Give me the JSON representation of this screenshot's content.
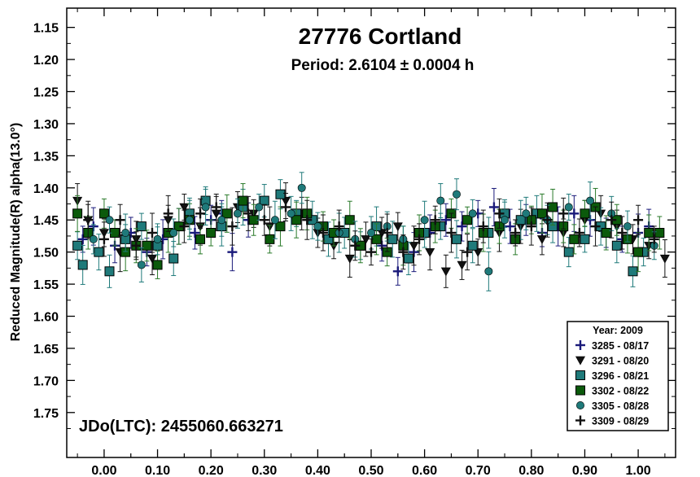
{
  "chart_data": {
    "type": "scatter",
    "title": "27776 Cortland",
    "subtitle": "Period: 2.6104 ± 0.0004 h",
    "ylabel": "Reduced Magnitude(R) alpha(13.0°)",
    "xlabel": "",
    "annotation": "JDo(LTC): 2455060.663271",
    "xlim": [
      -0.07,
      1.07
    ],
    "ylim": [
      1.12,
      1.82
    ],
    "y_inverted": true,
    "x_ticks": [
      "0.00",
      "0.10",
      "0.20",
      "0.30",
      "0.40",
      "0.50",
      "0.60",
      "0.70",
      "0.80",
      "0.90",
      "1.00"
    ],
    "y_ticks": [
      "1.15",
      "1.20",
      "1.25",
      "1.30",
      "1.35",
      "1.40",
      "1.45",
      "1.50",
      "1.55",
      "1.60",
      "1.65",
      "1.70",
      "1.75"
    ],
    "legend": {
      "title": "Year: 2009",
      "position": "bottom-right"
    },
    "series": [
      {
        "name": "3285 - 08/17",
        "marker": "plus",
        "color": "#1a1a7a",
        "points": [
          [
            -0.04,
            1.48
          ],
          [
            -0.02,
            1.46
          ],
          [
            0.02,
            1.49
          ],
          [
            0.05,
            1.47
          ],
          [
            0.08,
            1.5
          ],
          [
            0.11,
            1.48
          ],
          [
            0.14,
            1.46
          ],
          [
            0.17,
            1.47
          ],
          [
            0.2,
            1.45
          ],
          [
            0.22,
            1.44
          ],
          [
            0.24,
            1.5
          ],
          [
            0.27,
            1.45
          ],
          [
            0.52,
            1.49
          ],
          [
            0.55,
            1.53
          ],
          [
            0.58,
            1.5
          ],
          [
            0.61,
            1.47
          ],
          [
            0.64,
            1.45
          ],
          [
            0.67,
            1.46
          ],
          [
            0.7,
            1.44
          ],
          [
            0.73,
            1.43
          ],
          [
            0.76,
            1.46
          ],
          [
            0.79,
            1.45
          ],
          [
            0.82,
            1.47
          ],
          [
            0.85,
            1.46
          ],
          [
            0.88,
            1.44
          ],
          [
            0.91,
            1.45
          ],
          [
            0.94,
            1.47
          ],
          [
            0.97,
            1.48
          ],
          [
            1.0,
            1.47
          ],
          [
            1.02,
            1.46
          ]
        ]
      },
      {
        "name": "3291 - 08/20",
        "marker": "triangle-down",
        "color": "#111111",
        "points": [
          [
            -0.05,
            1.42
          ],
          [
            -0.03,
            1.45
          ],
          [
            0.0,
            1.47
          ],
          [
            0.03,
            1.5
          ],
          [
            0.06,
            1.48
          ],
          [
            0.09,
            1.51
          ],
          [
            0.12,
            1.45
          ],
          [
            0.15,
            1.43
          ],
          [
            0.18,
            1.46
          ],
          [
            0.21,
            1.44
          ],
          [
            0.25,
            1.43
          ],
          [
            0.28,
            1.44
          ],
          [
            0.31,
            1.46
          ],
          [
            0.34,
            1.42
          ],
          [
            0.37,
            1.44
          ],
          [
            0.4,
            1.47
          ],
          [
            0.43,
            1.49
          ],
          [
            0.46,
            1.51
          ],
          [
            0.49,
            1.48
          ],
          [
            0.52,
            1.47
          ],
          [
            0.55,
            1.46
          ],
          [
            0.58,
            1.49
          ],
          [
            0.61,
            1.5
          ],
          [
            0.64,
            1.53
          ],
          [
            0.67,
            1.52
          ],
          [
            0.7,
            1.5
          ],
          [
            0.74,
            1.47
          ],
          [
            0.78,
            1.46
          ],
          [
            0.82,
            1.48
          ],
          [
            0.86,
            1.47
          ],
          [
            0.9,
            1.45
          ],
          [
            0.93,
            1.44
          ],
          [
            0.96,
            1.46
          ],
          [
            0.99,
            1.48
          ],
          [
            1.02,
            1.49
          ],
          [
            1.05,
            1.51
          ]
        ]
      },
      {
        "name": "3296 - 08/21",
        "marker": "square",
        "color": "#1f7a7a",
        "points": [
          [
            -0.05,
            1.49
          ],
          [
            -0.04,
            1.52
          ],
          [
            -0.01,
            1.5
          ],
          [
            0.01,
            1.53
          ],
          [
            0.04,
            1.48
          ],
          [
            0.07,
            1.46
          ],
          [
            0.1,
            1.49
          ],
          [
            0.13,
            1.51
          ],
          [
            0.16,
            1.44
          ],
          [
            0.19,
            1.42
          ],
          [
            0.22,
            1.46
          ],
          [
            0.26,
            1.43
          ],
          [
            0.3,
            1.42
          ],
          [
            0.33,
            1.41
          ],
          [
            0.36,
            1.44
          ],
          [
            0.39,
            1.45
          ],
          [
            0.42,
            1.48
          ],
          [
            0.45,
            1.47
          ],
          [
            0.48,
            1.49
          ],
          [
            0.51,
            1.46
          ],
          [
            0.54,
            1.48
          ],
          [
            0.57,
            1.51
          ],
          [
            0.6,
            1.47
          ],
          [
            0.63,
            1.46
          ],
          [
            0.66,
            1.48
          ],
          [
            0.69,
            1.49
          ],
          [
            0.72,
            1.47
          ],
          [
            0.75,
            1.44
          ],
          [
            0.78,
            1.45
          ],
          [
            0.81,
            1.44
          ],
          [
            0.84,
            1.46
          ],
          [
            0.87,
            1.5
          ],
          [
            0.9,
            1.48
          ],
          [
            0.93,
            1.46
          ],
          [
            0.96,
            1.49
          ],
          [
            0.99,
            1.53
          ],
          [
            1.01,
            1.5
          ]
        ]
      },
      {
        "name": "3302 - 08/22",
        "marker": "square",
        "color": "#0b5a0b",
        "points": [
          [
            -0.05,
            1.44
          ],
          [
            -0.03,
            1.47
          ],
          [
            0.0,
            1.44
          ],
          [
            0.02,
            1.47
          ],
          [
            0.04,
            1.5
          ],
          [
            0.06,
            1.49
          ],
          [
            0.08,
            1.49
          ],
          [
            0.1,
            1.52
          ],
          [
            0.12,
            1.47
          ],
          [
            0.14,
            1.46
          ],
          [
            0.16,
            1.45
          ],
          [
            0.18,
            1.48
          ],
          [
            0.2,
            1.47
          ],
          [
            0.23,
            1.44
          ],
          [
            0.26,
            1.42
          ],
          [
            0.28,
            1.45
          ],
          [
            0.31,
            1.48
          ],
          [
            0.33,
            1.46
          ],
          [
            0.36,
            1.45
          ],
          [
            0.38,
            1.44
          ],
          [
            0.41,
            1.46
          ],
          [
            0.43,
            1.47
          ],
          [
            0.46,
            1.45
          ],
          [
            0.48,
            1.49
          ],
          [
            0.51,
            1.48
          ],
          [
            0.53,
            1.5
          ],
          [
            0.56,
            1.49
          ],
          [
            0.59,
            1.47
          ],
          [
            0.62,
            1.46
          ],
          [
            0.65,
            1.44
          ],
          [
            0.68,
            1.45
          ],
          [
            0.71,
            1.47
          ],
          [
            0.74,
            1.46
          ],
          [
            0.77,
            1.48
          ],
          [
            0.8,
            1.45
          ],
          [
            0.82,
            1.44
          ],
          [
            0.84,
            1.43
          ],
          [
            0.86,
            1.46
          ],
          [
            0.88,
            1.48
          ],
          [
            0.9,
            1.44
          ],
          [
            0.92,
            1.43
          ],
          [
            0.94,
            1.47
          ],
          [
            0.96,
            1.45
          ],
          [
            0.98,
            1.48
          ],
          [
            1.0,
            1.5
          ],
          [
            1.02,
            1.47
          ],
          [
            1.04,
            1.47
          ]
        ]
      },
      {
        "name": "3305 - 08/28",
        "marker": "circle",
        "color": "#1f7a7a",
        "points": [
          [
            -0.02,
            1.48
          ],
          [
            0.01,
            1.45
          ],
          [
            0.04,
            1.47
          ],
          [
            0.07,
            1.52
          ],
          [
            0.1,
            1.48
          ],
          [
            0.13,
            1.47
          ],
          [
            0.16,
            1.45
          ],
          [
            0.19,
            1.43
          ],
          [
            0.22,
            1.45
          ],
          [
            0.25,
            1.44
          ],
          [
            0.29,
            1.43
          ],
          [
            0.32,
            1.45
          ],
          [
            0.35,
            1.44
          ],
          [
            0.37,
            1.4
          ],
          [
            0.4,
            1.46
          ],
          [
            0.44,
            1.47
          ],
          [
            0.47,
            1.48
          ],
          [
            0.5,
            1.47
          ],
          [
            0.53,
            1.46
          ],
          [
            0.56,
            1.48
          ],
          [
            0.6,
            1.45
          ],
          [
            0.63,
            1.42
          ],
          [
            0.66,
            1.41
          ],
          [
            0.69,
            1.44
          ],
          [
            0.72,
            1.53
          ],
          [
            0.75,
            1.45
          ],
          [
            0.79,
            1.44
          ],
          [
            0.83,
            1.45
          ],
          [
            0.87,
            1.43
          ],
          [
            0.91,
            1.42
          ],
          [
            0.95,
            1.44
          ],
          [
            0.98,
            1.46
          ],
          [
            1.03,
            1.49
          ]
        ]
      },
      {
        "name": "3309 - 08/29",
        "marker": "plus",
        "color": "#111111",
        "points": [
          [
            -0.03,
            1.45
          ],
          [
            0.0,
            1.48
          ],
          [
            0.03,
            1.45
          ],
          [
            0.06,
            1.49
          ],
          [
            0.09,
            1.47
          ],
          [
            0.12,
            1.44
          ],
          [
            0.15,
            1.46
          ],
          [
            0.18,
            1.44
          ],
          [
            0.21,
            1.43
          ],
          [
            0.24,
            1.46
          ],
          [
            0.27,
            1.44
          ],
          [
            0.3,
            1.45
          ],
          [
            0.34,
            1.43
          ],
          [
            0.38,
            1.45
          ],
          [
            0.41,
            1.47
          ],
          [
            0.44,
            1.46
          ],
          [
            0.47,
            1.49
          ],
          [
            0.5,
            1.5
          ],
          [
            0.53,
            1.47
          ],
          [
            0.56,
            1.5
          ],
          [
            0.59,
            1.48
          ],
          [
            0.62,
            1.45
          ],
          [
            0.65,
            1.47
          ],
          [
            0.68,
            1.5
          ],
          [
            0.71,
            1.46
          ],
          [
            0.74,
            1.44
          ],
          [
            0.77,
            1.47
          ],
          [
            0.8,
            1.46
          ],
          [
            0.83,
            1.45
          ],
          [
            0.86,
            1.44
          ],
          [
            0.89,
            1.47
          ],
          [
            0.92,
            1.46
          ],
          [
            0.95,
            1.45
          ],
          [
            0.97,
            1.47
          ],
          [
            1.0,
            1.45
          ],
          [
            1.03,
            1.48
          ]
        ]
      }
    ]
  }
}
